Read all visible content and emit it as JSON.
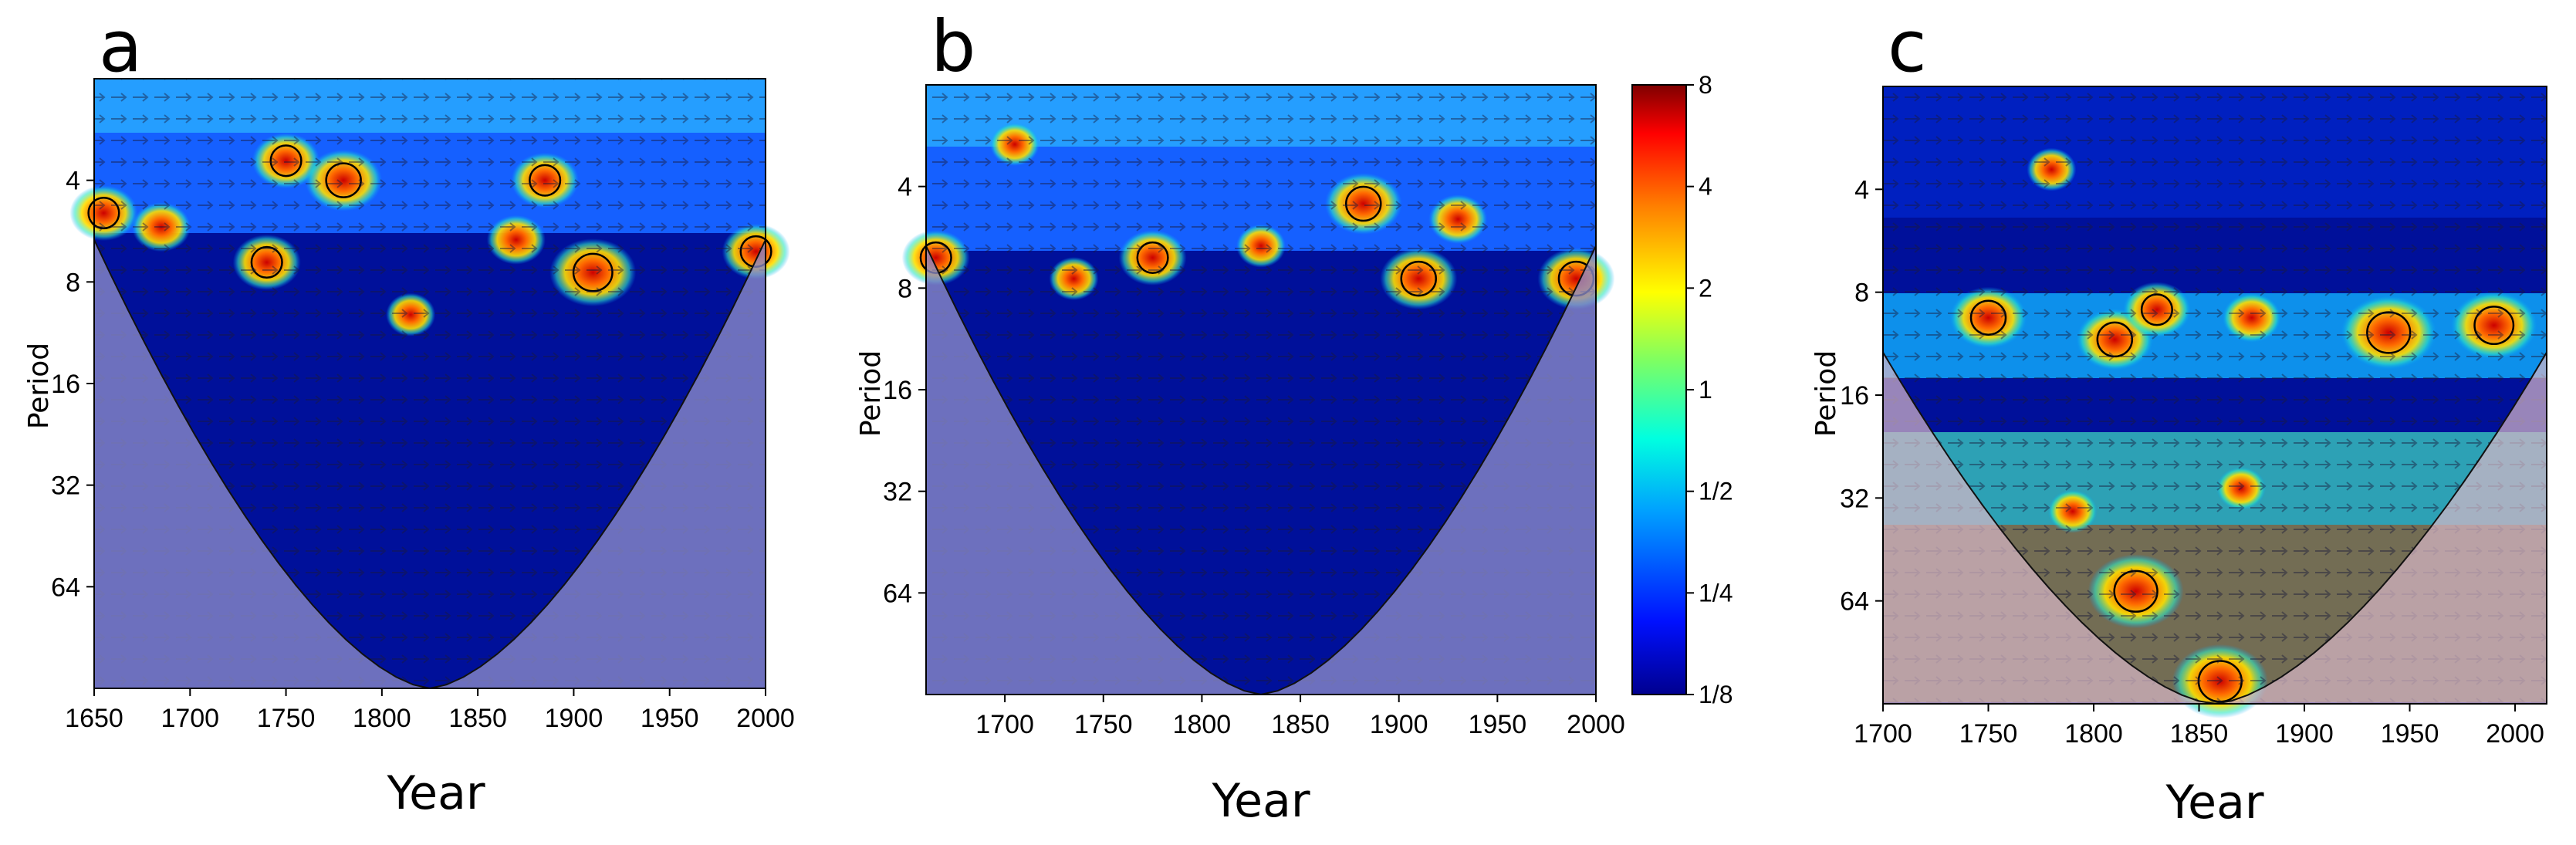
{
  "chart_data": [
    {
      "panel": "a",
      "type": "heatmap",
      "title": "",
      "xlabel": "Year",
      "ylabel": "Period",
      "xlim": [
        1650,
        2000
      ],
      "ylim": [
        2,
        128
      ],
      "y_scale": "log2",
      "x_ticks": [
        1650,
        1700,
        1750,
        1800,
        1850,
        1900,
        1950,
        2000
      ],
      "y_ticks": [
        4,
        8,
        16,
        32,
        64
      ],
      "cone_of_influence": true,
      "hotspots": [
        {
          "year": 1655,
          "period": 5,
          "power": 5
        },
        {
          "year": 1685,
          "period": 5.5,
          "power": 4
        },
        {
          "year": 1740,
          "period": 7,
          "power": 5
        },
        {
          "year": 1750,
          "period": 3.5,
          "power": 5
        },
        {
          "year": 1780,
          "period": 4,
          "power": 6
        },
        {
          "year": 1815,
          "period": 10,
          "power": 3
        },
        {
          "year": 1870,
          "period": 6,
          "power": 4
        },
        {
          "year": 1885,
          "period": 4,
          "power": 5
        },
        {
          "year": 1910,
          "period": 7.5,
          "power": 7
        },
        {
          "year": 1995,
          "period": 6.5,
          "power": 5
        }
      ]
    },
    {
      "panel": "b",
      "type": "heatmap",
      "title": "",
      "xlabel": "Year",
      "ylabel": "Period",
      "xlim": [
        1660,
        2000
      ],
      "ylim": [
        2,
        128
      ],
      "y_scale": "log2",
      "x_ticks": [
        1700,
        1750,
        1800,
        1850,
        1900,
        1950,
        2000
      ],
      "y_ticks": [
        4,
        8,
        16,
        32,
        64
      ],
      "cone_of_influence": true,
      "hotspots": [
        {
          "year": 1665,
          "period": 6.5,
          "power": 5
        },
        {
          "year": 1705,
          "period": 3,
          "power": 3
        },
        {
          "year": 1735,
          "period": 7.5,
          "power": 3
        },
        {
          "year": 1775,
          "period": 6.5,
          "power": 5
        },
        {
          "year": 1830,
          "period": 6,
          "power": 3
        },
        {
          "year": 1882,
          "period": 4.5,
          "power": 6
        },
        {
          "year": 1910,
          "period": 7.5,
          "power": 6
        },
        {
          "year": 1930,
          "period": 5,
          "power": 4
        },
        {
          "year": 1990,
          "period": 7.5,
          "power": 6
        }
      ]
    },
    {
      "panel": "c",
      "type": "heatmap",
      "title": "",
      "xlabel": "Year",
      "ylabel": "Period",
      "xlim": [
        1700,
        2015
      ],
      "ylim": [
        2,
        128
      ],
      "y_scale": "log2",
      "x_ticks": [
        1700,
        1750,
        1800,
        1850,
        1900,
        1950,
        2000
      ],
      "y_ticks": [
        4,
        8,
        16,
        32,
        64
      ],
      "cone_of_influence": true,
      "hotspots": [
        {
          "year": 1750,
          "period": 9.5,
          "power": 6
        },
        {
          "year": 1780,
          "period": 3.5,
          "power": 3
        },
        {
          "year": 1810,
          "period": 11,
          "power": 6
        },
        {
          "year": 1830,
          "period": 9,
          "power": 5
        },
        {
          "year": 1875,
          "period": 9.5,
          "power": 4
        },
        {
          "year": 1940,
          "period": 10.5,
          "power": 8
        },
        {
          "year": 1990,
          "period": 10,
          "power": 7
        },
        {
          "year": 1820,
          "period": 60,
          "power": 8
        },
        {
          "year": 1860,
          "period": 110,
          "power": 8
        },
        {
          "year": 1870,
          "period": 30,
          "power": 3
        },
        {
          "year": 1790,
          "period": 35,
          "power": 3
        }
      ]
    }
  ],
  "colorbar": {
    "labels": [
      "8",
      "4",
      "2",
      "1",
      "1/2",
      "1/4",
      "1/8"
    ],
    "values": [
      8,
      4,
      2,
      1,
      0.5,
      0.25,
      0.125
    ],
    "colors": [
      "#7f0000",
      "#ff0000",
      "#ffaa00",
      "#ffff00",
      "#00e0a0",
      "#00c8ff",
      "#0064ff",
      "#00008f"
    ]
  }
}
